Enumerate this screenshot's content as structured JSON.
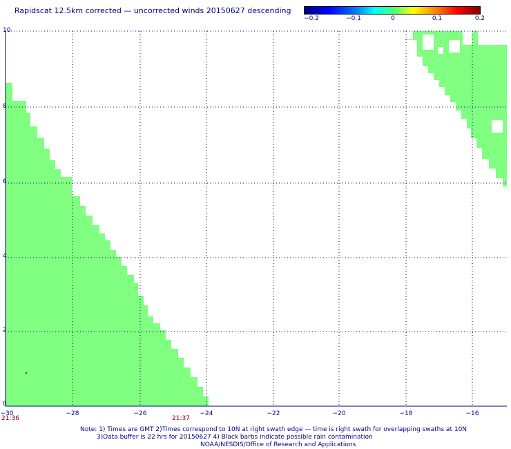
{
  "title": "Rapidscat 12.5km corrected — uncorrected winds 20150627 descending",
  "colorbar": {
    "labels": [
      "−0.2",
      "−0.1",
      "0",
      "0.1",
      "0.2"
    ],
    "range": [
      -0.2,
      0.2
    ]
  },
  "axes": {
    "x_ticks": [
      "−30",
      "−28",
      "−26",
      "−24",
      "−22",
      "−20",
      "−18",
      "−16"
    ],
    "y_ticks": [
      "0",
      "2",
      "4",
      "6",
      "8",
      "10"
    ],
    "xlim": [
      -30,
      -15
    ],
    "ylim": [
      0,
      10
    ]
  },
  "times": {
    "left": "21:36",
    "right": "21:37"
  },
  "notes": {
    "line1": "Note: 1) Times are GMT 2)Times correspond to 10N at right swath edge — time is right swath for overlapping swaths at 10N",
    "line2": "3)Data buffer is 22 hrs for 20150627 4) Black barbs indicate possible rain contamination",
    "line3": "NOAA/NESDIS/Office of Research and Applications"
  },
  "swath_color": "#80ff80",
  "grid_color": "#000080"
}
